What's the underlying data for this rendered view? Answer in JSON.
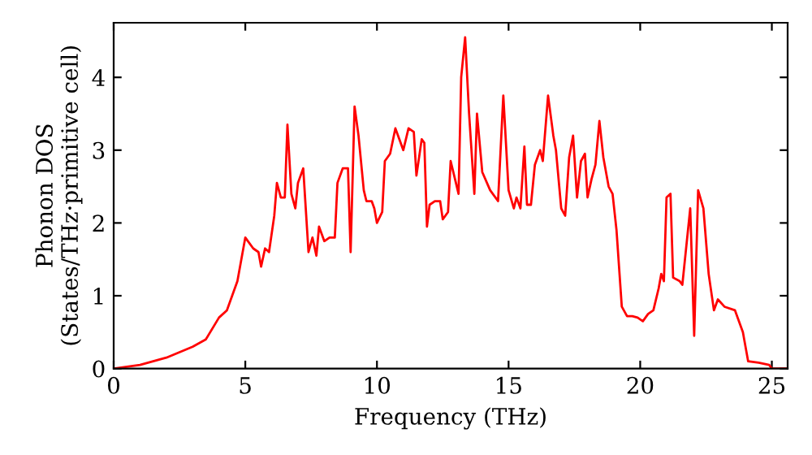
{
  "chart_data": {
    "type": "line",
    "xlabel": "Frequency (THz)",
    "ylabel": "Phonon DOS\n(States/THz·primitive cell)",
    "xlim": [
      0,
      25.6
    ],
    "ylim": [
      0,
      4.75
    ],
    "xticks": [
      0,
      5,
      10,
      15,
      20,
      25
    ],
    "yticks": [
      0,
      1,
      2,
      3,
      4
    ],
    "grid": false,
    "legend": false,
    "marker": "none",
    "line_style": "solid",
    "series": [
      {
        "color": "#ff0000",
        "x": [
          0,
          1,
          2,
          3,
          3.5,
          4,
          4.3,
          4.7,
          5.0,
          5.3,
          5.5,
          5.6,
          5.75,
          5.9,
          6.1,
          6.2,
          6.35,
          6.5,
          6.6,
          6.75,
          6.9,
          7.0,
          7.2,
          7.4,
          7.55,
          7.7,
          7.8,
          8.0,
          8.2,
          8.4,
          8.5,
          8.7,
          8.9,
          9.0,
          9.15,
          9.3,
          9.5,
          9.6,
          9.8,
          9.9,
          10.0,
          10.2,
          10.3,
          10.5,
          10.7,
          10.9,
          11.0,
          11.2,
          11.4,
          11.5,
          11.7,
          11.8,
          11.9,
          12.0,
          12.2,
          12.4,
          12.5,
          12.7,
          12.8,
          13.0,
          13.1,
          13.2,
          13.35,
          13.5,
          13.7,
          13.8,
          14.0,
          14.3,
          14.6,
          14.8,
          15.0,
          15.2,
          15.3,
          15.45,
          15.6,
          15.7,
          15.85,
          16.0,
          16.2,
          16.3,
          16.5,
          16.7,
          16.8,
          17.0,
          17.15,
          17.3,
          17.45,
          17.6,
          17.75,
          17.9,
          18.0,
          18.15,
          18.3,
          18.45,
          18.6,
          18.8,
          18.95,
          19.1,
          19.3,
          19.5,
          19.7,
          19.9,
          20.1,
          20.3,
          20.5,
          20.7,
          20.8,
          20.9,
          21.0,
          21.15,
          21.25,
          21.5,
          21.6,
          21.9,
          22.05,
          22.2,
          22.4,
          22.6,
          22.8,
          22.95,
          23.2,
          23.6,
          23.9,
          24.1,
          24.5,
          24.9,
          25.0,
          25.6
        ],
        "values": [
          0,
          0.05,
          0.15,
          0.3,
          0.4,
          0.7,
          0.8,
          1.2,
          1.8,
          1.65,
          1.6,
          1.4,
          1.65,
          1.6,
          2.1,
          2.55,
          2.35,
          2.35,
          3.35,
          2.4,
          2.2,
          2.55,
          2.75,
          1.6,
          1.8,
          1.55,
          1.95,
          1.75,
          1.8,
          1.8,
          2.55,
          2.75,
          2.75,
          1.6,
          3.6,
          3.2,
          2.45,
          2.3,
          2.3,
          2.2,
          2.0,
          2.15,
          2.85,
          2.95,
          3.3,
          3.1,
          3.0,
          3.3,
          3.25,
          2.65,
          3.15,
          3.1,
          1.95,
          2.25,
          2.3,
          2.3,
          2.05,
          2.15,
          2.85,
          2.55,
          2.4,
          4.0,
          4.55,
          3.5,
          2.4,
          3.5,
          2.7,
          2.45,
          2.3,
          3.75,
          2.45,
          2.2,
          2.35,
          2.2,
          3.05,
          2.25,
          2.25,
          2.8,
          3.0,
          2.85,
          3.75,
          3.2,
          3.0,
          2.2,
          2.1,
          2.9,
          3.2,
          2.35,
          2.85,
          2.95,
          2.35,
          2.6,
          2.8,
          3.4,
          2.9,
          2.5,
          2.4,
          1.9,
          0.85,
          0.72,
          0.72,
          0.7,
          0.65,
          0.75,
          0.8,
          1.1,
          1.3,
          1.2,
          2.35,
          2.4,
          1.25,
          1.2,
          1.15,
          2.2,
          0.45,
          2.45,
          2.2,
          1.3,
          0.8,
          0.95,
          0.85,
          0.8,
          0.5,
          0.1,
          0.08,
          0.05,
          0.0,
          0.0
        ]
      }
    ]
  }
}
